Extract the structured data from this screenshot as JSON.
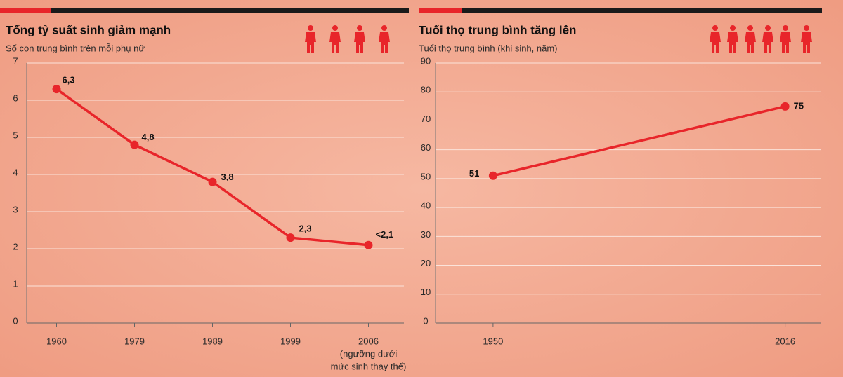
{
  "chart_data": [
    {
      "type": "line",
      "title": "Tổng tỷ suất sinh giảm mạnh",
      "subtitle": "Số con trung bình trên mỗi phụ nữ",
      "categories": [
        "1960",
        "1979",
        "1989",
        "1999",
        "2006"
      ],
      "annotations": [
        "(ngưỡng dưới",
        "mức sinh thay thế)"
      ],
      "series": [
        {
          "name": null,
          "color": "#e8252a",
          "values": [
            6.3,
            4.8,
            3.8,
            2.3,
            2.1
          ],
          "value_labels": [
            "6,3",
            "4,8",
            "3,8",
            "2,3",
            "<2,1"
          ]
        }
      ],
      "ylim": [
        0,
        7
      ],
      "yticks": [
        0,
        1,
        2,
        3,
        4,
        5,
        6,
        7
      ],
      "grid": true
    },
    {
      "type": "line",
      "title": "Tuổi thọ trung bình tăng lên",
      "subtitle": "Tuổi thọ trung bình (khi sinh, năm)",
      "x": [
        1950,
        2016
      ],
      "xlim": [
        1937,
        2024
      ],
      "xticks": [
        1950,
        2016
      ],
      "series": [
        {
          "name": null,
          "color": "#e8252a",
          "values": [
            51,
            75
          ],
          "value_labels": [
            "51",
            "75"
          ]
        }
      ],
      "ylim": [
        0,
        90
      ],
      "yticks": [
        0,
        10,
        20,
        30,
        40,
        50,
        60,
        70,
        80,
        90
      ],
      "grid": true
    }
  ]
}
